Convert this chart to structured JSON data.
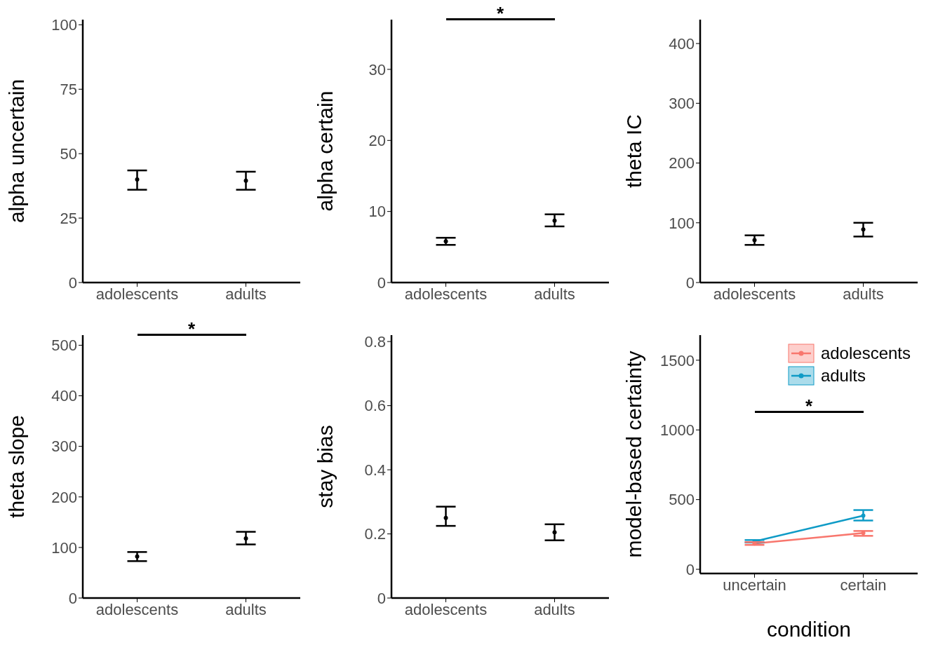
{
  "chart_data": [
    {
      "type": "scatter",
      "ylabel": "alpha uncertain",
      "categories": [
        "adolescents",
        "adults"
      ],
      "ylim": [
        0,
        102
      ],
      "yticks": [
        0,
        25,
        50,
        75,
        100
      ],
      "marker": "circle",
      "series": [
        {
          "color": "#000000",
          "values": [
            40,
            39.5
          ],
          "errors": [
            [
              36,
              43.5
            ],
            [
              36,
              43
            ]
          ]
        }
      ]
    },
    {
      "type": "scatter",
      "ylabel": "alpha certain",
      "categories": [
        "adolescents",
        "adults"
      ],
      "ylim": [
        0,
        37
      ],
      "yticks": [
        0,
        10,
        20,
        30
      ],
      "marker": "circle",
      "annotations": [
        "*"
      ],
      "series": [
        {
          "color": "#000000",
          "values": [
            5.8,
            8.7
          ],
          "errors": [
            [
              5.3,
              6.3
            ],
            [
              7.9,
              9.6
            ]
          ]
        }
      ]
    },
    {
      "type": "scatter",
      "ylabel": "theta IC",
      "categories": [
        "adolescents",
        "adults"
      ],
      "ylim": [
        0,
        440
      ],
      "yticks": [
        0,
        100,
        200,
        300,
        400
      ],
      "marker": "circle",
      "series": [
        {
          "color": "#000000",
          "values": [
            71,
            89
          ],
          "errors": [
            [
              63,
              79
            ],
            [
              77,
              100
            ]
          ]
        }
      ]
    },
    {
      "type": "scatter",
      "ylabel": "theta slope",
      "categories": [
        "adolescents",
        "adults"
      ],
      "ylim": [
        0,
        520
      ],
      "yticks": [
        0,
        100,
        200,
        300,
        400,
        500
      ],
      "marker": "circle",
      "annotations": [
        "*"
      ],
      "series": [
        {
          "color": "#000000",
          "values": [
            82,
            118
          ],
          "errors": [
            [
              73,
              91
            ],
            [
              106,
              131
            ]
          ]
        }
      ]
    },
    {
      "type": "scatter",
      "ylabel": "stay bias",
      "categories": [
        "adolescents",
        "adults"
      ],
      "ylim": [
        0,
        0.82
      ],
      "yticks": [
        0,
        0.2,
        0.4,
        0.6,
        0.8
      ],
      "marker": "circle",
      "series": [
        {
          "color": "#000000",
          "values": [
            0.25,
            0.205
          ],
          "errors": [
            [
              0.225,
              0.285
            ],
            [
              0.18,
              0.23
            ]
          ]
        }
      ]
    },
    {
      "type": "line",
      "ylabel": "model-based certainty",
      "xlabel": "condition",
      "categories": [
        "uncertain",
        "certain"
      ],
      "ylim": [
        -30,
        1680
      ],
      "yticks": [
        0,
        500,
        1000,
        1500
      ],
      "marker": "circle",
      "legend": "top right",
      "annotations": [
        "*"
      ],
      "series": [
        {
          "name": "adolescents",
          "color": "#f8766d",
          "values": [
            185,
            260
          ],
          "errors": [
            [
              175,
              195
            ],
            [
              240,
              275
            ]
          ]
        },
        {
          "name": "adults",
          "color": "#0f9bc6",
          "values": [
            200,
            385
          ],
          "errors": [
            [
              192,
              210
            ],
            [
              350,
              425
            ]
          ]
        }
      ]
    }
  ]
}
